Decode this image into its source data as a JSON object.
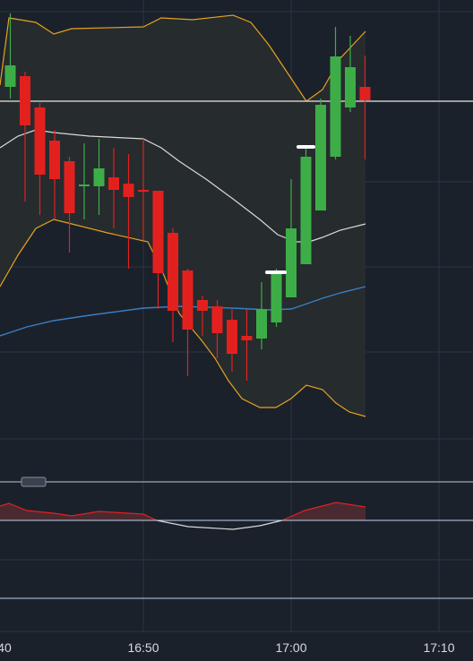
{
  "chart_data": {
    "type": "candlestick",
    "x_labels": [
      "40",
      "16:50",
      "17:00",
      "17:10"
    ],
    "ylim": [
      0,
      540
    ],
    "up_color": "#3dae47",
    "down_color": "#e2211f",
    "open": [
      443,
      455,
      420,
      383,
      360,
      332,
      332,
      342,
      335,
      328,
      327,
      280,
      238,
      205,
      198,
      183,
      165,
      162,
      180,
      208,
      245,
      305,
      365,
      420,
      443
    ],
    "high": [
      525,
      460,
      425,
      395,
      365,
      380,
      385,
      375,
      368,
      385,
      327,
      285,
      240,
      210,
      205,
      195,
      195,
      225,
      240,
      340,
      375,
      430,
      510,
      500,
      478
    ],
    "low": [
      430,
      315,
      300,
      295,
      258,
      295,
      300,
      285,
      240,
      272,
      195,
      158,
      120,
      165,
      140,
      125,
      115,
      150,
      175,
      208,
      245,
      305,
      362,
      415,
      362
    ],
    "close": [
      467,
      400,
      345,
      340,
      302,
      334,
      352,
      328,
      320,
      326,
      235,
      193,
      172,
      193,
      168,
      145,
      160,
      195,
      235,
      285,
      365,
      423,
      477,
      465,
      428
    ]
  }
}
